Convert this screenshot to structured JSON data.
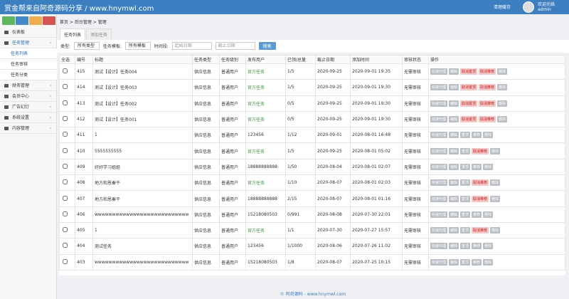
{
  "header": {
    "title": "赏金帮来自阿奇源码分享 / www.hnymwl.com",
    "cache_button": "清理缓存",
    "welcome": "欢迎光临",
    "user": "admin"
  },
  "sidebar": {
    "menu": [
      {
        "label": "仪表板"
      },
      {
        "label": "任务管理",
        "children": [
          "任务列表",
          "任务审核",
          "任务分类"
        ]
      },
      {
        "label": "财务管理"
      },
      {
        "label": "会员中心"
      },
      {
        "label": "广告幻灯"
      },
      {
        "label": "系统设置"
      },
      {
        "label": "内容管理"
      }
    ]
  },
  "breadcrumb": [
    "首页",
    "后台管理",
    "管理"
  ],
  "tabs": [
    "任务列表",
    "添加任务"
  ],
  "filter": {
    "type_label": "类型:",
    "type_value": "所有类型",
    "template_label": "任务模板:",
    "template_value": "所有模板",
    "time_label": "时间段:",
    "start_placeholder": "起始日期",
    "end_placeholder": "截止日期",
    "search": "搜索"
  },
  "table": {
    "columns": [
      "全选",
      "编号",
      "标题",
      "任务类型",
      "任务级别",
      "发布用户",
      "已领/总量",
      "截止日期",
      "添加时间",
      "审核状态",
      "操作"
    ],
    "rows": [
      [
        "415",
        "测试【设计】任务004",
        "供应信息",
        "普通用户",
        "官方任务",
        "1/5",
        "2020-09-25",
        "2020-09-01 19:35",
        "无需审核",
        [
          "快速代理",
          "编辑",
          "取消置顶",
          "取消推荐",
          "删除"
        ]
      ],
      [
        "414",
        "测试【设计】任务003",
        "供应信息",
        "普通用户",
        "官方任务",
        "1/5",
        "2020-09-25",
        "2020-09-01 19:30",
        "无需审核",
        [
          "快速代理",
          "编辑",
          "取消置顶",
          "取消推荐",
          "删除"
        ]
      ],
      [
        "413",
        "测试【设计】任务002",
        "供应信息",
        "普通用户",
        "官方任务",
        "0/5",
        "2020-09-25",
        "2020-09-01 19:30",
        "无需审核",
        [
          "快速代理",
          "编辑",
          "取消置顶",
          "取消推荐",
          "删除"
        ]
      ],
      [
        "412",
        "测试【设计】任务001",
        "供应信息",
        "普通用户",
        "官方任务",
        "0/5",
        "2020-09-25",
        "2020-09-01 19:30",
        "无需审核",
        [
          "快速代理",
          "编辑",
          "取消置顶",
          "取消推荐",
          "删除"
        ]
      ],
      [
        "411",
        "1",
        "供应信息",
        "普通用户",
        "123456",
        "1/12",
        "2020-09-01",
        "2020-08-01 16:48",
        "无需审核",
        [
          "快速代理",
          "编辑",
          "置顶",
          "推荐",
          "删除"
        ]
      ],
      [
        "410",
        "5555555555",
        "供应信息",
        "普通用户",
        "官方任务",
        "1/5",
        "2020-09-25",
        "2020-08-01 05:02",
        "无需审核",
        [
          "快速代理",
          "编辑",
          "置顶",
          "取消推荐",
          "删除"
        ]
      ],
      [
        "409",
        "好好学习姐姐",
        "供应信息",
        "普通用户",
        "18888888888",
        "1/50",
        "2020-08-04",
        "2020-08-01 02:07",
        "无需审核",
        [
          "快速代理",
          "编辑",
          "置顶",
          "推荐",
          "删除"
        ]
      ],
      [
        "408",
        "地方和恩秦干",
        "供应信息",
        "普通用户",
        "官方任务",
        "1/10",
        "2020-08-07",
        "2020-08-01 02:03",
        "无需审核",
        [
          "快速代理",
          "编辑",
          "置顶",
          "取消推荐",
          "删除"
        ]
      ],
      [
        "407",
        "地方和恩秦干",
        "供应信息",
        "普通用户",
        "18888888888",
        "2/15",
        "2020-08-07",
        "2020-08-01 01:16",
        "无需审核",
        [
          "快速代理",
          "编辑",
          "置顶",
          "取消推荐",
          "删除"
        ]
      ],
      [
        "406",
        "wwwwwwwwwwwwwwwwwwwwwwwwwww",
        "供应信息",
        "普通用户",
        "15218080503",
        "0/991",
        "2020-08-08",
        "2020-07-30 22:01",
        "无需审核",
        [
          "快速代理",
          "编辑",
          "置顶",
          "推荐",
          "删除"
        ]
      ],
      [
        "405",
        "1",
        "供应信息",
        "普通用户",
        "官方任务",
        "1/1",
        "2020-07-30",
        "2020-07-27 15:57",
        "无需审核",
        [
          "快速代理",
          "编辑",
          "置顶",
          "取消推荐",
          "删除"
        ]
      ],
      [
        "404",
        "测试任务",
        "供应信息",
        "普通用户",
        "123456",
        "1/1000",
        "2020-08-06",
        "2020-07-26 11:02",
        "无需审核",
        [
          "快速代理",
          "编辑",
          "置顶",
          "推荐",
          "删除"
        ]
      ],
      [
        "403",
        "wwwwwwwwwwwwwwwwwwwwwwwwwww",
        "供应信息",
        "普通用户",
        "15218080503",
        "1/8",
        "2020-08-07",
        "2020-07-25 10:15",
        "无需审核",
        [
          "快速代理",
          "编辑",
          "置顶",
          "推荐",
          "删除"
        ]
      ]
    ]
  },
  "footer": "© 阿奇源码 - www.hnymwl.com"
}
